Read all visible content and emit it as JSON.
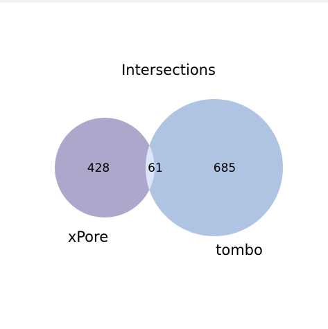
{
  "diagram": {
    "type": "venn2",
    "title": "Intersections",
    "sets": [
      {
        "name": "xPore",
        "only_count": "428",
        "color": "#ada8cb"
      },
      {
        "name": "tombo",
        "only_count": "685",
        "color": "#aec4e2"
      }
    ],
    "intersection": {
      "count": "61",
      "color": "#dce6fa"
    }
  }
}
